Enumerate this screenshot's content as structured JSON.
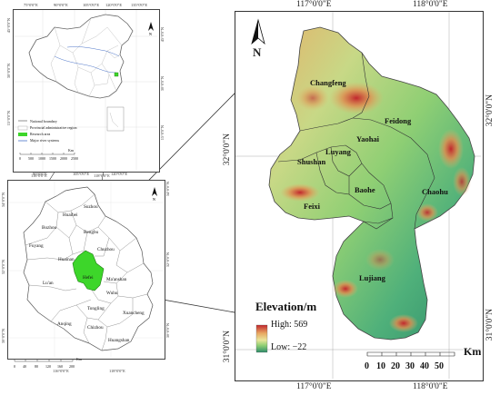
{
  "main_map": {
    "top_labels": [
      "117°0'0\"E",
      "118°0'0\"E"
    ],
    "bottom_labels": [
      "117°0'0\"E",
      "118°0'0\"E"
    ],
    "left_labels": [
      "32°0'0\"N",
      "31°0'0\"N"
    ],
    "right_labels": [
      "32°0'0\"N",
      "31°0'0\"N"
    ],
    "north_label": "N",
    "districts": [
      "Changfeng",
      "Feidong",
      "Yaohai",
      "Luyang",
      "Shushan",
      "Baohe",
      "Feixi",
      "Chaohu",
      "Lujiang"
    ],
    "elevation_title": "Elevation/m",
    "elevation_high": "High: 569",
    "elevation_low": "Low: −22",
    "scale_ticks": [
      "0",
      "10",
      "20",
      "30",
      "40",
      "50"
    ],
    "scale_unit": "Km",
    "colors": {
      "low": "#2e8c6a",
      "mid": "#8fcf74",
      "high": "#e0b069",
      "peak": "#c1272d"
    }
  },
  "china_map": {
    "top_labels": [
      "75°0'0\"E",
      "90°0'0\"E",
      "105°0'0\"E",
      "120°0'0\"E",
      "135°0'0\"E"
    ],
    "bottom_labels": [
      "90°0'0\"E",
      "105°0'0\"E",
      "120°0'0\"E"
    ],
    "left_labels": [
      "45°0'0\"N",
      "30°0'0\"N",
      "15°0'0\"N"
    ],
    "right_labels": [
      "45°0'0\"N",
      "30°0'0\"N",
      "15°0'0\"N"
    ],
    "north_label": "N",
    "legend": [
      {
        "label": "National boundary",
        "kind": "line",
        "color": "#777777"
      },
      {
        "label": "Provincial administrative region",
        "kind": "box",
        "color": "#ffffff"
      },
      {
        "label": "Research area",
        "kind": "fill",
        "color": "#3dd62a"
      },
      {
        "label": "Major river systems",
        "kind": "line",
        "color": "#4a73c8"
      }
    ],
    "scale_ticks": [
      "0",
      "500",
      "1000",
      "1500",
      "2000",
      "2500"
    ],
    "scale_unit": "Km"
  },
  "anhui_map": {
    "top_labels": [
      "116°0'0\"E",
      "118°0'0\"E"
    ],
    "bottom_labels": [
      "116°0'0\"E",
      "118°0'0\"E"
    ],
    "left_labels": [
      "34°0'0\"N",
      "32°0'0\"N",
      "30°0'0\"N"
    ],
    "right_labels": [
      "34°0'0\"N",
      "32°0'0\"N",
      "30°0'0\"N"
    ],
    "north_label": "N",
    "prefectures": [
      "Suzhou",
      "Huaibei",
      "Bozhou",
      "Bengbu",
      "Fuyang",
      "Chuzhou",
      "Huainan",
      "Ma'anshan",
      "Lu'an",
      "Hefei",
      "Wuhu",
      "Tongling",
      "Xuancheng",
      "Anqing",
      "Chizhou",
      "Huangshan"
    ],
    "research_color": "#3dd62a",
    "scale_ticks": [
      "0",
      "40",
      "80",
      "120",
      "160",
      "200"
    ],
    "scale_unit": "Km"
  }
}
